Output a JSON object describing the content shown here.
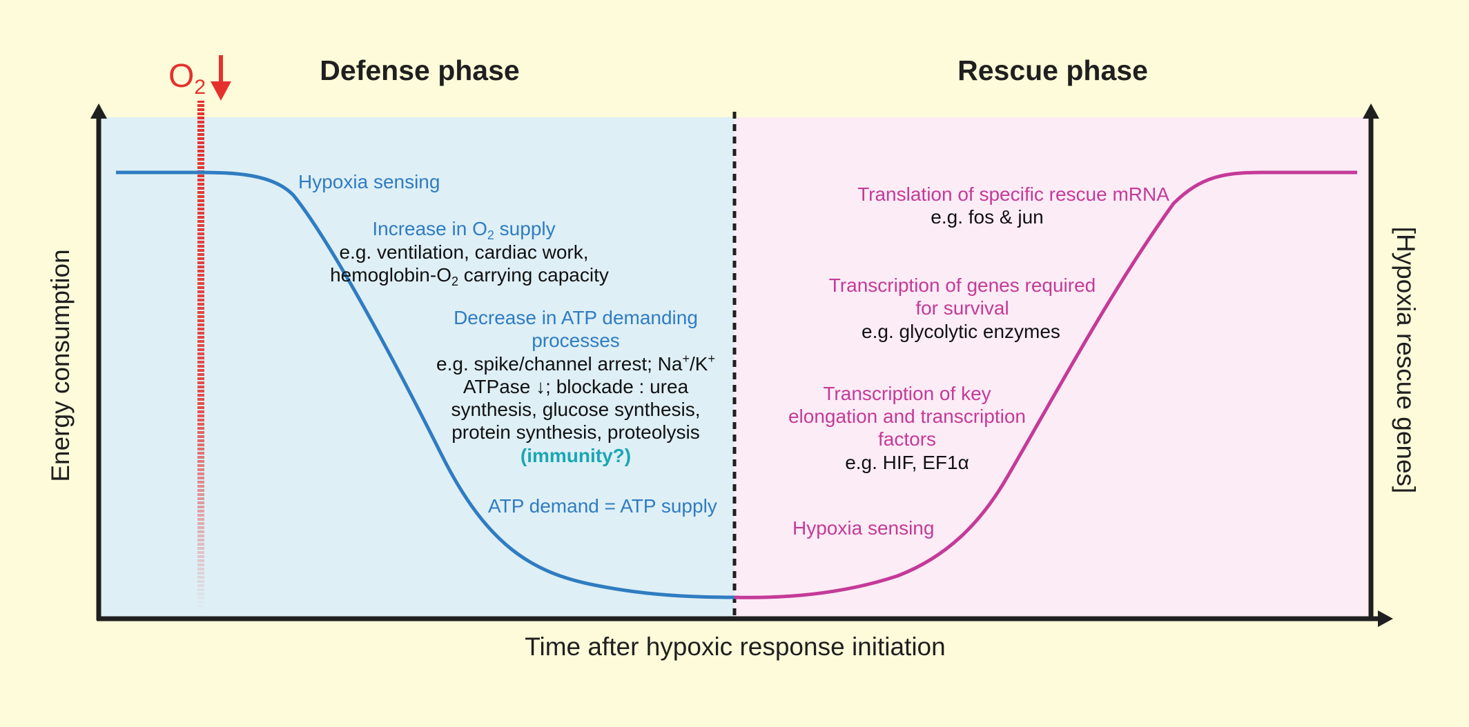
{
  "titles": {
    "defense": "Defense phase",
    "rescue": "Rescue phase"
  },
  "axes": {
    "left": "Energy consumption",
    "right": "[Hypoxia rescue genes]",
    "bottom": "Time after hypoxic response initiation"
  },
  "oxygen_marker": {
    "symbol": "O",
    "subscript": "2"
  },
  "defense_annotations": {
    "hypoxia_sensing": "Hypoxia sensing",
    "o2_supply_pre": "Increase in O",
    "o2_supply_sub": "2",
    "o2_supply_post": " supply",
    "o2_example_1": "e.g. ventilation, cardiac work,",
    "o2_example_2_pre": "hemoglobin-O",
    "o2_example_2_sub": "2",
    "o2_example_2_post": " carrying capacity",
    "atp_decrease_1": "Decrease in ATP demanding",
    "atp_decrease_2": "processes",
    "atp_ex_1_pre": "e.g. spike/channel arrest; Na",
    "atp_ex_1_sup1": "+",
    "atp_ex_1_mid": "/K",
    "atp_ex_1_sup2": "+",
    "atp_ex_2": "ATPase ↓; blockade : urea",
    "atp_ex_3": "synthesis, glucose synthesis,",
    "atp_ex_4": "protein synthesis, proteolysis",
    "immunity": "(immunity?)",
    "balance": "ATP demand = ATP supply"
  },
  "rescue_annotations": {
    "translation": "Translation of specific rescue mRNA",
    "translation_ex": "e.g. fos & jun",
    "transcription_survival_1": "Transcription of genes required",
    "transcription_survival_2": "for survival",
    "transcription_survival_ex": "e.g. glycolytic enzymes",
    "transcription_key_1": "Transcription of key",
    "transcription_key_2": "elongation and transcription",
    "transcription_key_3": "factors",
    "transcription_key_ex": "e.g. HIF, EF1α",
    "hypoxia_sensing": "Hypoxia sensing"
  },
  "colors": {
    "background": "#fdfbd9",
    "defense_panel": "#deeff6",
    "rescue_panel": "#fcecf6",
    "defense_curve": "#2f7cc1",
    "rescue_curve": "#c43a98",
    "oxygen_marker": "#e5312d",
    "axes": "#1f1f1f"
  }
}
